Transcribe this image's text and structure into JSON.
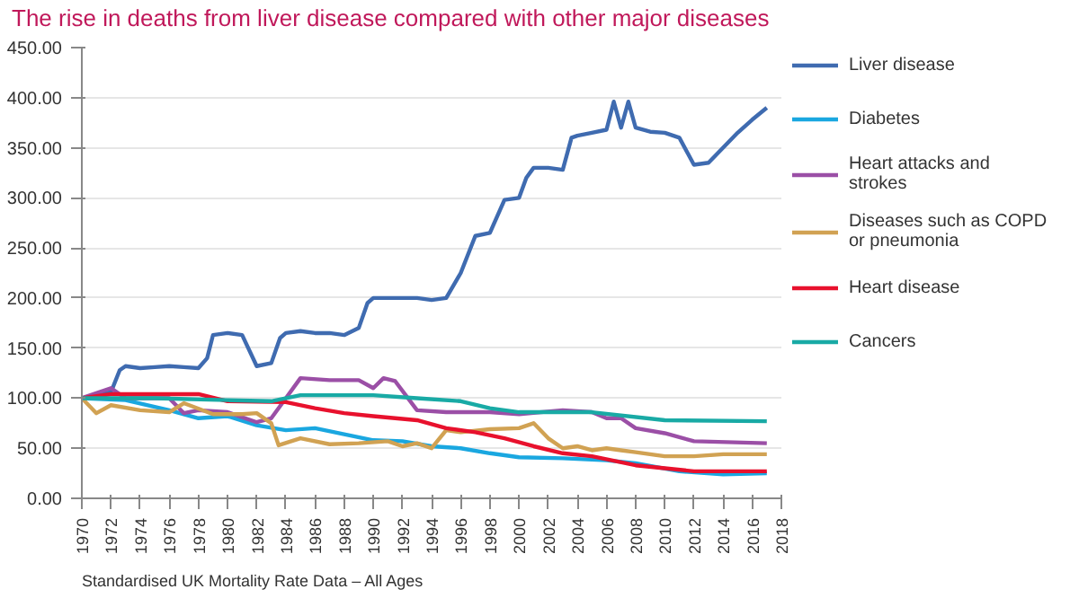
{
  "chart_data": {
    "type": "line",
    "title": "The rise in deaths from liver disease compared with other major diseases",
    "annotations": [
      "Standardised UK Mortality Rate Data – All Ages"
    ],
    "xlim": [
      1970,
      2018
    ],
    "xticks": [
      1970,
      1972,
      1974,
      1976,
      1978,
      1980,
      1982,
      1984,
      1986,
      1988,
      1990,
      1992,
      1994,
      1996,
      1998,
      2000,
      2002,
      2004,
      2006,
      2008,
      2010,
      2012,
      2014,
      2016,
      2018
    ],
    "ylim": [
      0,
      450
    ],
    "yticks": [
      {
        "value": 0,
        "label": "0.00"
      },
      {
        "value": 50,
        "label": "50.00"
      },
      {
        "value": 100,
        "label": "100.00"
      },
      {
        "value": 150,
        "label": "150.00"
      },
      {
        "value": 200,
        "label": "200.00"
      },
      {
        "value": 250,
        "label": "250.00"
      },
      {
        "value": 300,
        "label": "300.00"
      },
      {
        "value": 350,
        "label": "350.00"
      },
      {
        "value": 400,
        "label": "400.00"
      },
      {
        "value": 450,
        "label": "450.00"
      }
    ],
    "grid": "y",
    "legend": "right",
    "marker": "none",
    "line_style": "solid",
    "series": [
      {
        "name": "Liver disease",
        "color": "#3f6bb0",
        "x": [
          1970,
          1971,
          1972,
          1972.6,
          1973,
          1974,
          1975,
          1976,
          1977,
          1978,
          1978.6,
          1979,
          1980,
          1981,
          1982,
          1983,
          1983.6,
          1984,
          1985,
          1986,
          1987,
          1988,
          1989,
          1989.6,
          1990,
          1991,
          1992,
          1993,
          1994,
          1995,
          1996,
          1997,
          1998,
          1999,
          2000,
          2000.5,
          2001,
          2002,
          2003,
          2003.6,
          2004,
          2005,
          2006,
          2006.5,
          2007,
          2007.5,
          2008,
          2008.5,
          2009,
          2010,
          2011,
          2012,
          2013,
          2014,
          2015,
          2016,
          2017
        ],
        "values": [
          100,
          103,
          106,
          128,
          132,
          130,
          131,
          132,
          131,
          130,
          140,
          163,
          165,
          163,
          132,
          135,
          160,
          165,
          167,
          165,
          165,
          163,
          170,
          195,
          200,
          200,
          200,
          200,
          198,
          200,
          225,
          262,
          265,
          298,
          300,
          320,
          330,
          330,
          328,
          360,
          362,
          365,
          368,
          396,
          370,
          396,
          370,
          368,
          366,
          365,
          360,
          333,
          335,
          350,
          365,
          378,
          390
        ]
      },
      {
        "name": "Diabetes",
        "color": "#1aa7e0",
        "x": [
          1970,
          1973,
          1976,
          1978,
          1980,
          1982,
          1984,
          1986,
          1988,
          1990,
          1992,
          1994,
          1996,
          1998,
          2000,
          2003,
          2006,
          2008,
          2011,
          2014,
          2017
        ],
        "values": [
          100,
          98,
          88,
          80,
          82,
          73,
          68,
          70,
          64,
          58,
          57,
          52,
          50,
          45,
          41,
          40,
          38,
          35,
          27,
          24,
          25
        ]
      },
      {
        "name": "Heart attacks and strokes",
        "color": "#9b4fa6",
        "x": [
          1970,
          1972,
          1973,
          1976,
          1977,
          1978,
          1980,
          1982,
          1983,
          1984,
          1985,
          1987,
          1989,
          1990,
          1990.7,
          1991.5,
          1993,
          1995,
          1998,
          2000,
          2003,
          2005,
          2006,
          2007,
          2008,
          2010,
          2012,
          2017
        ],
        "values": [
          100,
          110,
          100,
          100,
          85,
          88,
          86,
          76,
          80,
          100,
          120,
          118,
          118,
          110,
          120,
          117,
          88,
          86,
          86,
          84,
          88,
          86,
          80,
          80,
          70,
          65,
          57,
          55
        ]
      },
      {
        "name": "Diseases such as COPD or pneumonia",
        "color": "#d1a253",
        "x": [
          1970,
          1971,
          1972,
          1974,
          1976,
          1977,
          1979,
          1981,
          1982,
          1983,
          1983.5,
          1985,
          1987,
          1989,
          1991,
          1992,
          1993,
          1994,
          1995,
          1996,
          1998,
          2000,
          2001,
          2002,
          2003,
          2004,
          2005,
          2006,
          2007,
          2008,
          2010,
          2012,
          2014,
          2017
        ],
        "values": [
          100,
          85,
          93,
          88,
          86,
          95,
          84,
          84,
          85,
          75,
          53,
          60,
          54,
          55,
          57,
          52,
          55,
          50,
          68,
          66,
          69,
          70,
          75,
          60,
          50,
          52,
          48,
          50,
          48,
          46,
          42,
          42,
          44,
          44
        ]
      },
      {
        "name": "Heart disease",
        "color": "#e8112d",
        "x": [
          1970,
          1972,
          1978,
          1980,
          1984,
          1986,
          1988,
          1990,
          1993,
          1995,
          1997,
          1999,
          2001,
          2003,
          2005,
          2008,
          2010,
          2012,
          2017
        ],
        "values": [
          100,
          104,
          104,
          97,
          96,
          90,
          85,
          82,
          78,
          70,
          66,
          60,
          52,
          45,
          42,
          33,
          30,
          27,
          27
        ]
      },
      {
        "name": "Cancers",
        "color": "#19aaa5",
        "x": [
          1970,
          1975,
          1980,
          1983,
          1985,
          1990,
          1993,
          1996,
          1998,
          2000,
          2005,
          2010,
          2017
        ],
        "values": [
          100,
          100,
          98,
          97,
          103,
          103,
          100,
          97,
          90,
          86,
          86,
          78,
          77
        ]
      }
    ]
  }
}
